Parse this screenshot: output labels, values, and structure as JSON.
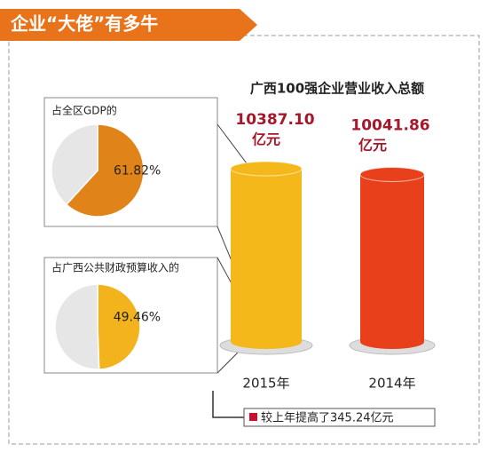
{
  "header": "企业“大佬”有多牛",
  "chart_data": [
    {
      "type": "pie",
      "title": "占全区GDP的",
      "categories": [
        null,
        null
      ],
      "values": [
        61.82,
        38.18
      ],
      "value_labels": [
        "61.82%",
        null
      ],
      "colors": [
        "#e0841a",
        "#e6e6e6"
      ]
    },
    {
      "type": "pie",
      "title": "占广西公共财政预算收入的",
      "categories": [
        null,
        null
      ],
      "values": [
        49.46,
        50.54
      ],
      "value_labels": [
        "49.46%",
        null
      ],
      "colors": [
        "#f2b31c",
        "#e6e6e6"
      ]
    },
    {
      "type": "bar",
      "title": "广西100强企业营业收入总额",
      "categories": [
        "2015年",
        "2014年"
      ],
      "values": [
        10387.1,
        10041.86
      ],
      "value_labels": [
        "10387.10",
        "10041.86"
      ],
      "value_unit": "亿元",
      "colors": [
        "#f5b81a",
        "#e8401a"
      ]
    }
  ],
  "note": "较上年提高了345.24亿元"
}
